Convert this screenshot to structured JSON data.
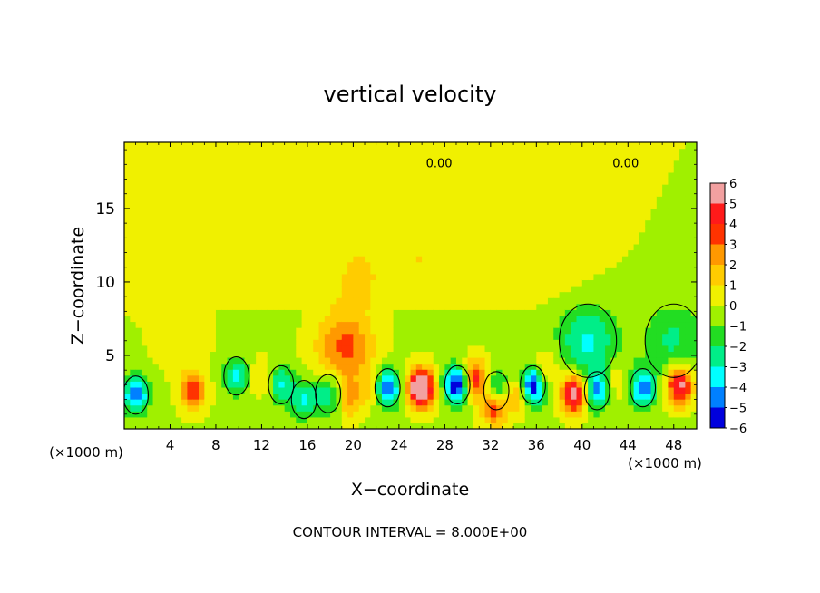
{
  "chart_data": {
    "type": "heatmap",
    "title": "vertical velocity",
    "xlabel": "X−coordinate",
    "ylabel": "Z−coordinate",
    "x_unit_label": "(×1000 m)",
    "x_unit_label_right": "(×1000 m)",
    "xlim": [
      0,
      50
    ],
    "ylim": [
      0,
      19.5
    ],
    "x_ticks": [
      4,
      8,
      12,
      16,
      20,
      24,
      28,
      32,
      36,
      40,
      44,
      48
    ],
    "x_tick_labels": [
      "4",
      "8",
      "12",
      "16",
      "20",
      "24",
      "28",
      "32",
      "36",
      "40",
      "44",
      "48"
    ],
    "y_ticks": [
      5,
      10,
      15
    ],
    "y_tick_labels": [
      "5",
      "10",
      "15"
    ],
    "colorbar": {
      "levels": [
        6,
        5,
        4,
        3,
        2,
        1,
        0,
        -1,
        -2,
        -3,
        -4,
        -5,
        -6
      ],
      "labels": [
        "6",
        "5",
        "4",
        "3",
        "2",
        "1",
        "0",
        "−1",
        "−2",
        "−3",
        "−4",
        "−5",
        "−6"
      ],
      "colors": [
        "#f2a0a0",
        "#ff1a1a",
        "#ff3300",
        "#ff9900",
        "#ffcc00",
        "#f0f000",
        "#a0f000",
        "#22dd22",
        "#00ee88",
        "#00ffff",
        "#0080ff",
        "#0000dd",
        "#6600aa"
      ]
    },
    "contour_labels": [
      {
        "text": "0.00",
        "x": 27.5,
        "y": 18.1
      },
      {
        "text": "0.00",
        "x": 43.8,
        "y": 18.1
      }
    ],
    "field_features": [
      {
        "x": 1.0,
        "z": 2.3,
        "w": -4.5
      },
      {
        "x": 6.0,
        "z": 2.6,
        "w": 4.0
      },
      {
        "x": 9.8,
        "z": 3.6,
        "w": -3.0
      },
      {
        "x": 12.0,
        "z": 3.5,
        "w": 1.5
      },
      {
        "x": 13.7,
        "z": 3.0,
        "w": -3.0
      },
      {
        "x": 15.7,
        "z": 2.0,
        "w": -3.0
      },
      {
        "x": 17.8,
        "z": 2.4,
        "w": -3.0
      },
      {
        "x": 19.3,
        "z": 5.6,
        "w": 3.5
      },
      {
        "x": 19.7,
        "z": 2.0,
        "w": 2.0
      },
      {
        "x": 21.5,
        "z": 2.8,
        "w": 1.5
      },
      {
        "x": 23.0,
        "z": 2.8,
        "w": -5.0
      },
      {
        "x": 25.9,
        "z": 2.8,
        "w": 8.0
      },
      {
        "x": 29.1,
        "z": 3.0,
        "w": -6.0
      },
      {
        "x": 30.6,
        "z": 3.4,
        "w": 5.0
      },
      {
        "x": 32.5,
        "z": 2.6,
        "w": -4.0
      },
      {
        "x": 32.3,
        "z": 1.6,
        "w": 5.0
      },
      {
        "x": 34.3,
        "z": 2.4,
        "w": 2.5
      },
      {
        "x": 35.7,
        "z": 3.0,
        "w": -6.0
      },
      {
        "x": 36.7,
        "z": 4.0,
        "w": 2.0
      },
      {
        "x": 39.3,
        "z": 2.4,
        "w": 6.5
      },
      {
        "x": 41.3,
        "z": 2.6,
        "w": -4.0
      },
      {
        "x": 40.5,
        "z": 6.0,
        "w": -3.0
      },
      {
        "x": 43.0,
        "z": 3.3,
        "w": 1.5
      },
      {
        "x": 45.3,
        "z": 2.8,
        "w": -4.5
      },
      {
        "x": 48.5,
        "z": 3.0,
        "w": 6.0
      },
      {
        "x": 48.0,
        "z": 6.0,
        "w": -2.0
      },
      {
        "x": 20.5,
        "z": 10.5,
        "w": 1.2
      },
      {
        "x": 26.0,
        "z": 11.5,
        "w": 1.0
      },
      {
        "x": 38.0,
        "z": 12.0,
        "w": 0.8
      },
      {
        "x": 5.0,
        "z": 6.5,
        "w": 1.0
      },
      {
        "x": 1.5,
        "z": 10.0,
        "w": 0.5
      }
    ],
    "footer": "CONTOUR INTERVAL = 8.000E+00"
  }
}
